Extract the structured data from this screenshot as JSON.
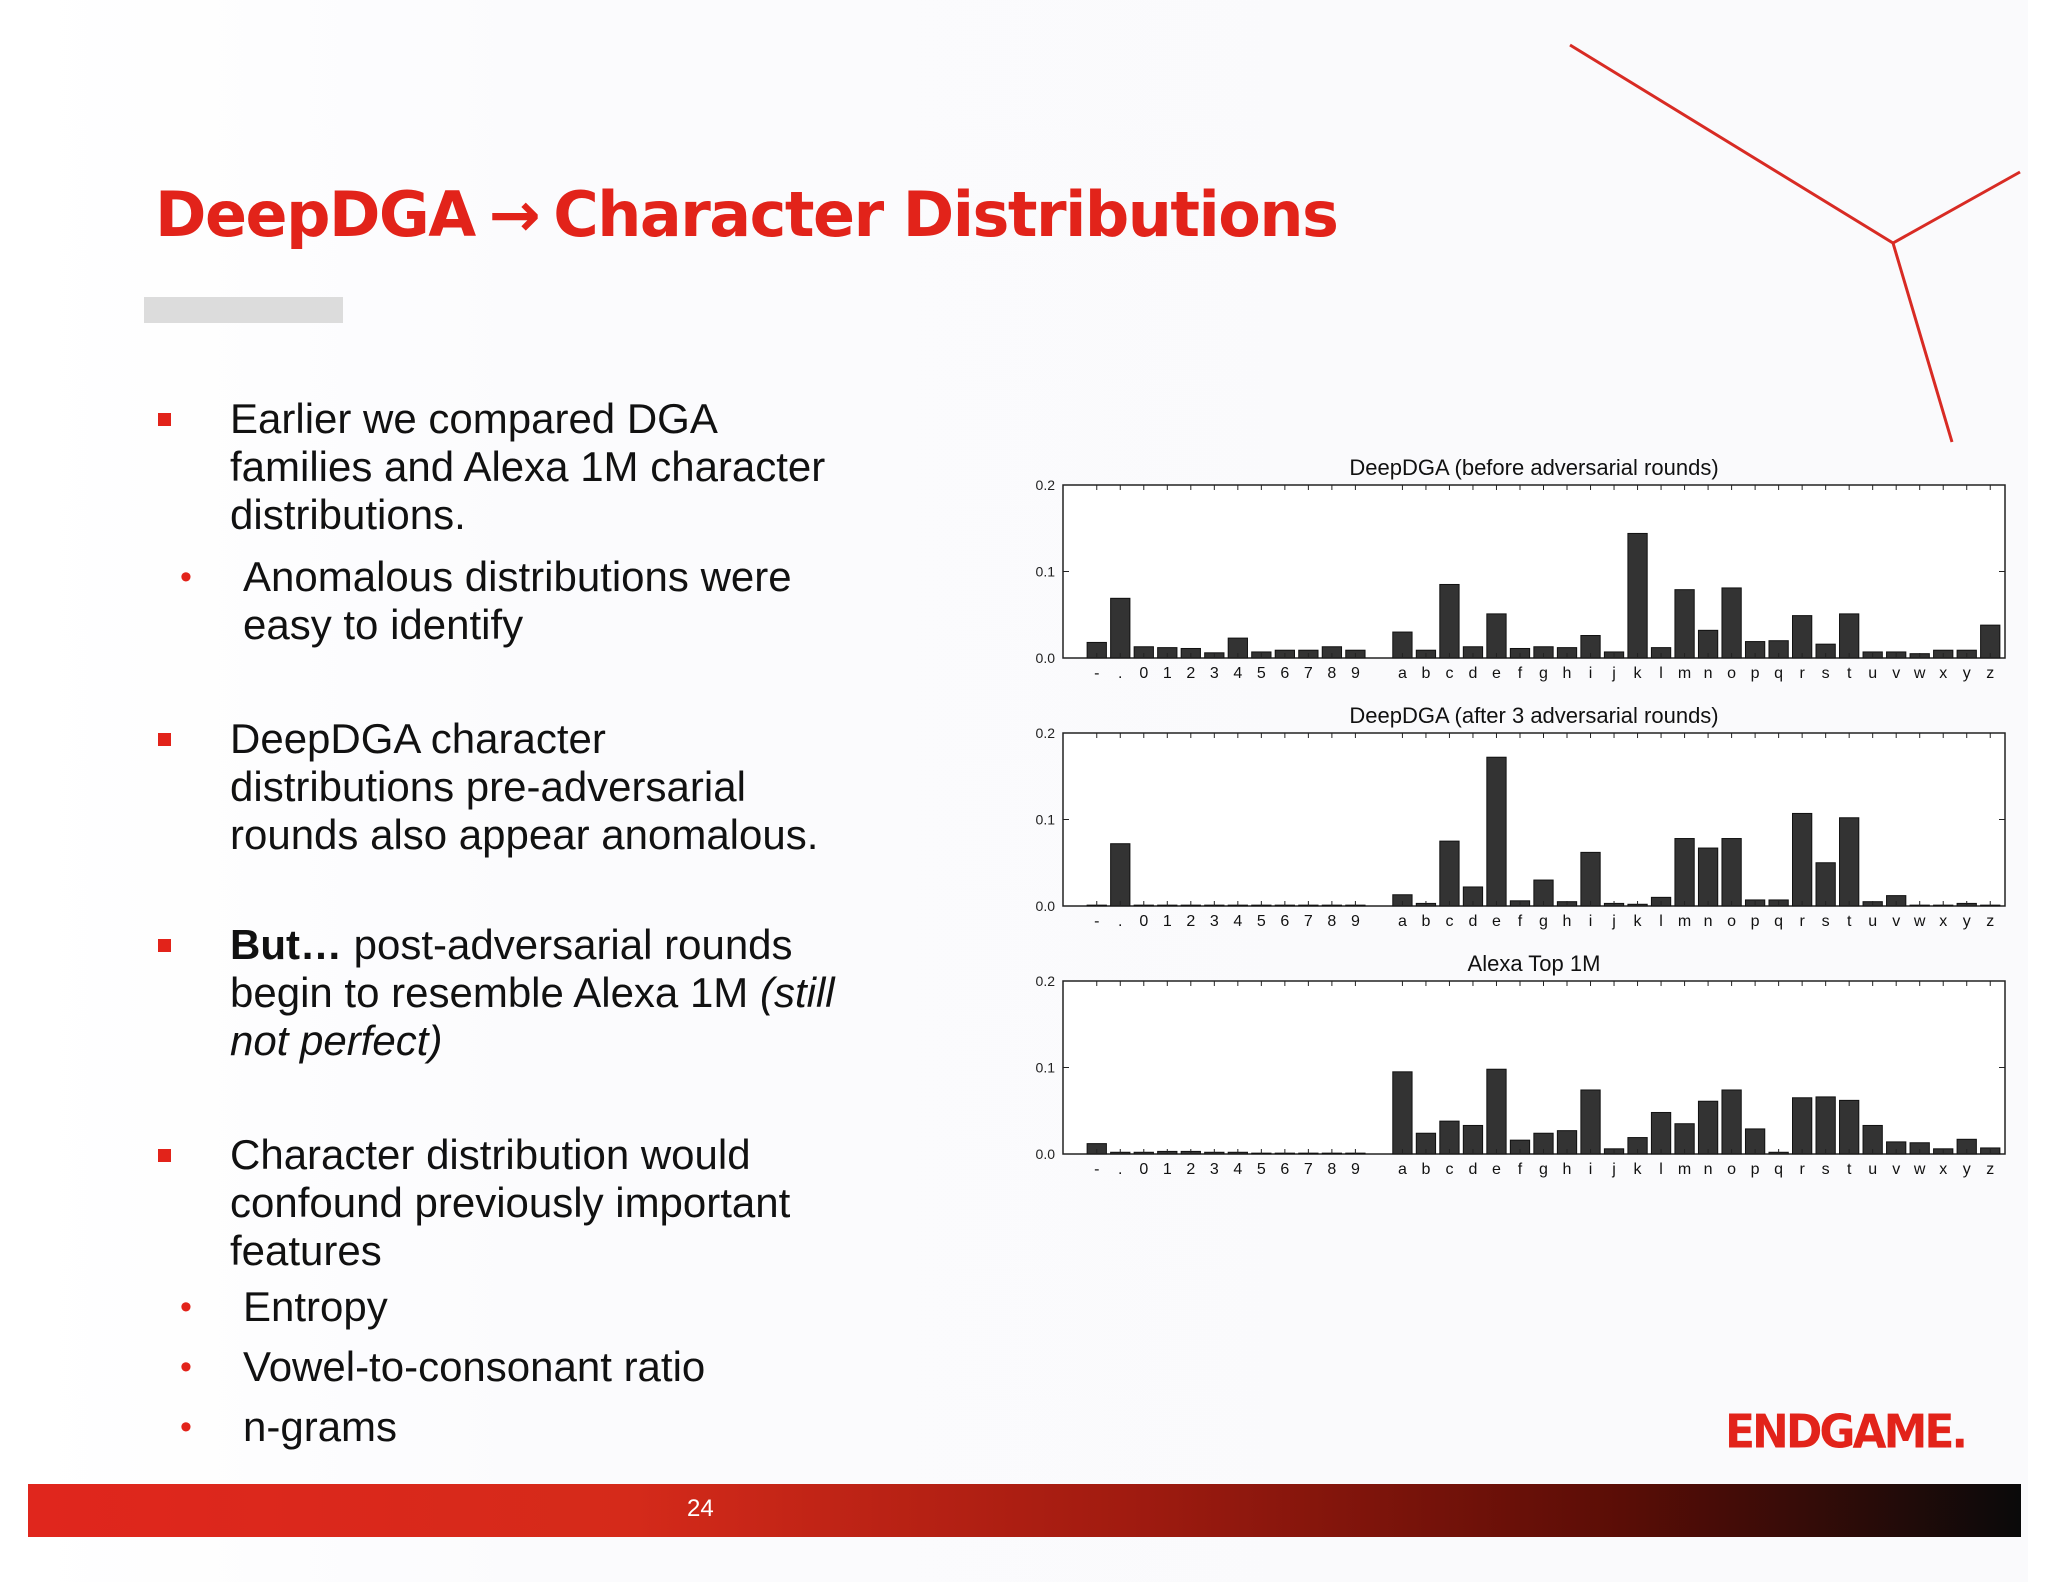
{
  "slide": {
    "title_left": "DeepDGA",
    "title_arrow": "→",
    "title_right": "Character Distributions",
    "page_number": "24",
    "logo": "ENDGAME."
  },
  "bullets": [
    {
      "text": "Earlier we compared DGA families and Alexa 1M character distributions.",
      "sub": [
        "Anomalous distributions were easy to identify"
      ]
    },
    {
      "text": "DeepDGA character distributions pre-adversarial rounds also appear anomalous.",
      "sub": []
    },
    {
      "bold": "But…",
      "text": " post-adversarial rounds begin to resemble Alexa 1M ",
      "italic": "(still not perfect)",
      "sub": []
    },
    {
      "text": "Character distribution would confound previously important features",
      "sub": [
        "Entropy",
        "Vowel-to-consonant ratio",
        "n-grams"
      ]
    }
  ],
  "colors": {
    "accent": "#e2231a",
    "bar": "#333333",
    "gray_bar": "#dcdcdc"
  },
  "chart_data": [
    {
      "type": "bar",
      "title": "DeepDGA (before adversarial rounds)",
      "ylim": [
        0,
        0.2
      ],
      "yticks": [
        "0.0",
        "0.1",
        "0.2"
      ],
      "categories": [
        "-",
        ".",
        "0",
        "1",
        "2",
        "3",
        "4",
        "5",
        "6",
        "7",
        "8",
        "9",
        "a",
        "b",
        "c",
        "d",
        "e",
        "f",
        "g",
        "h",
        "i",
        "j",
        "k",
        "l",
        "m",
        "n",
        "o",
        "p",
        "q",
        "r",
        "s",
        "t",
        "u",
        "v",
        "w",
        "x",
        "y",
        "z"
      ],
      "values": [
        0.018,
        0.069,
        0.013,
        0.012,
        0.011,
        0.006,
        0.023,
        0.007,
        0.009,
        0.009,
        0.013,
        0.009,
        0.03,
        0.009,
        0.085,
        0.013,
        0.051,
        0.011,
        0.013,
        0.012,
        0.026,
        0.007,
        0.144,
        0.012,
        0.079,
        0.032,
        0.081,
        0.019,
        0.02,
        0.049,
        0.016,
        0.051,
        0.007,
        0.007,
        0.005,
        0.009,
        0.009,
        0.038
      ]
    },
    {
      "type": "bar",
      "title": "DeepDGA (after 3 adversarial rounds)",
      "ylim": [
        0,
        0.2
      ],
      "yticks": [
        "0.0",
        "0.1",
        "0.2"
      ],
      "categories": [
        "-",
        ".",
        "0",
        "1",
        "2",
        "3",
        "4",
        "5",
        "6",
        "7",
        "8",
        "9",
        "a",
        "b",
        "c",
        "d",
        "e",
        "f",
        "g",
        "h",
        "i",
        "j",
        "k",
        "l",
        "m",
        "n",
        "o",
        "p",
        "q",
        "r",
        "s",
        "t",
        "u",
        "v",
        "w",
        "x",
        "y",
        "z"
      ],
      "values": [
        0.001,
        0.072,
        0.001,
        0.001,
        0.001,
        0.001,
        0.001,
        0.001,
        0.001,
        0.001,
        0.001,
        0.001,
        0.013,
        0.003,
        0.075,
        0.022,
        0.172,
        0.006,
        0.03,
        0.005,
        0.062,
        0.003,
        0.002,
        0.01,
        0.078,
        0.067,
        0.078,
        0.007,
        0.007,
        0.107,
        0.05,
        0.102,
        0.005,
        0.012,
        0.001,
        0.001,
        0.003,
        0.001
      ]
    },
    {
      "type": "bar",
      "title": "Alexa Top 1M",
      "ylim": [
        0,
        0.2
      ],
      "yticks": [
        "0.0",
        "0.1",
        "0.2"
      ],
      "categories": [
        "-",
        ".",
        "0",
        "1",
        "2",
        "3",
        "4",
        "5",
        "6",
        "7",
        "8",
        "9",
        "a",
        "b",
        "c",
        "d",
        "e",
        "f",
        "g",
        "h",
        "i",
        "j",
        "k",
        "l",
        "m",
        "n",
        "o",
        "p",
        "q",
        "r",
        "s",
        "t",
        "u",
        "v",
        "w",
        "x",
        "y",
        "z"
      ],
      "values": [
        0.012,
        0.002,
        0.002,
        0.003,
        0.003,
        0.002,
        0.002,
        0.001,
        0.001,
        0.001,
        0.001,
        0.001,
        0.095,
        0.024,
        0.038,
        0.033,
        0.098,
        0.016,
        0.024,
        0.027,
        0.074,
        0.006,
        0.019,
        0.048,
        0.035,
        0.061,
        0.074,
        0.029,
        0.002,
        0.065,
        0.066,
        0.062,
        0.033,
        0.014,
        0.013,
        0.006,
        0.017,
        0.007
      ]
    }
  ]
}
